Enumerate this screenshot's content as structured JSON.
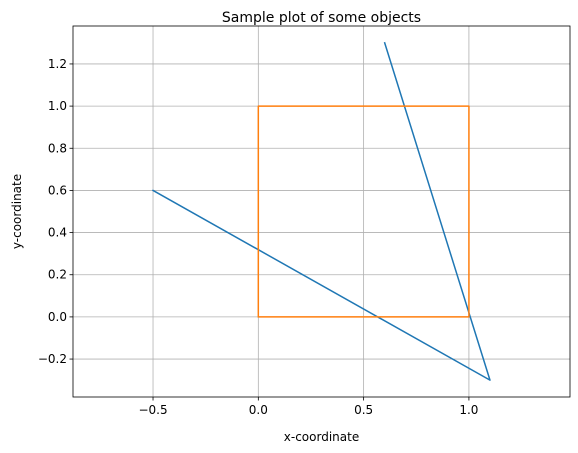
{
  "chart_data": {
    "type": "line",
    "title": "Sample plot of some objects",
    "xlabel": "x-coordinate",
    "ylabel": "y-coordinate",
    "xlim": [
      -0.88,
      1.48
    ],
    "ylim": [
      -0.38,
      1.38
    ],
    "xticks": [
      -0.5,
      0.0,
      0.5,
      1.0
    ],
    "xtick_labels": [
      "−0.5",
      "0.0",
      "0.5",
      "1.0"
    ],
    "yticks": [
      -0.2,
      0.0,
      0.2,
      0.4,
      0.6,
      0.8,
      1.0,
      1.2
    ],
    "ytick_labels": [
      "−0.2",
      "0.0",
      "0.2",
      "0.4",
      "0.6",
      "0.8",
      "1.0",
      "1.2"
    ],
    "grid": true,
    "series": [
      {
        "color": "#1f77b4",
        "x": [
          -0.5,
          1.1,
          0.6
        ],
        "y": [
          0.6,
          -0.3,
          1.3
        ]
      },
      {
        "color": "#ff7f0e",
        "x": [
          0.0,
          1.0,
          1.0,
          0.0,
          0.0
        ],
        "y": [
          0.0,
          0.0,
          1.0,
          1.0,
          0.0
        ]
      }
    ]
  }
}
